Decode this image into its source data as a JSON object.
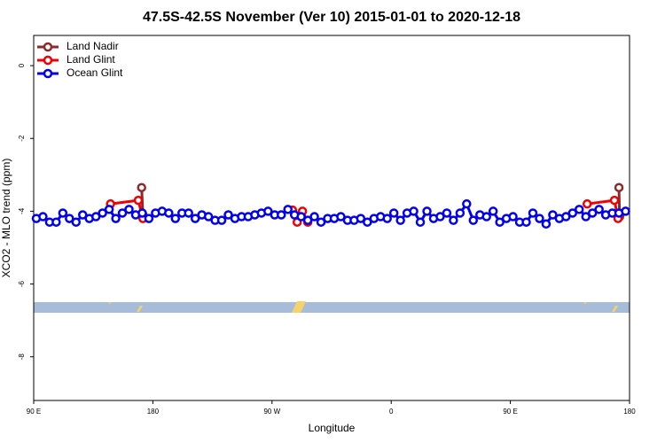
{
  "chart_data": {
    "type": "line",
    "title": "47.5S-42.5S November (Ver 10)   2015-01-01 to 2020-12-18",
    "xlabel": "Longitude",
    "ylabel": "XCO2 - MLO trend (ppm)",
    "xlim": [
      90,
      540
    ],
    "ylim": [
      -9.2,
      0.83
    ],
    "xticks": [
      {
        "value": 90,
        "label": "90 E"
      },
      {
        "value": 180,
        "label": "180"
      },
      {
        "value": 270,
        "label": "90 W"
      },
      {
        "value": 360,
        "label": "0"
      },
      {
        "value": 450,
        "label": "90 E"
      },
      {
        "value": 540,
        "label": "180"
      }
    ],
    "yticks": [
      0,
      -2,
      -4,
      -6,
      -8
    ],
    "legend": "top-left",
    "series": [
      {
        "name": "Land Nadir",
        "color": "#8b2a2a",
        "x": [
          171.5,
          172.5,
          400,
          532,
          532.5
        ],
        "values": [
          -3.35,
          -4.1,
          null,
          -3.35,
          -4.15
        ]
      },
      {
        "name": "Land Glint",
        "color": "#ee0000",
        "x": [
          148,
          169,
          172.5,
          230,
          285.5,
          289,
          293,
          297,
          400,
          508,
          528.6,
          531.3
        ],
        "values": [
          -3.8,
          -3.7,
          -4.2,
          null,
          -3.97,
          -4.3,
          -4.0,
          -4.3,
          null,
          -3.8,
          -3.7,
          -4.2
        ]
      },
      {
        "name": "Ocean Glint",
        "color": "#0000ee",
        "x": [
          92,
          97,
          102,
          107,
          112,
          117,
          122,
          127,
          132,
          137,
          142,
          147,
          152,
          157,
          162,
          167,
          172,
          177,
          182,
          187,
          192,
          197,
          202,
          207,
          212,
          217,
          222,
          227,
          232,
          237,
          242,
          247,
          252,
          257,
          262,
          267,
          272,
          277,
          282,
          287,
          292,
          297,
          302,
          307,
          312,
          317,
          322,
          327,
          332,
          337,
          342,
          347,
          352,
          357,
          362,
          367,
          372,
          377,
          382,
          387,
          392,
          397,
          402,
          407,
          412,
          417,
          422,
          427,
          432,
          437,
          442,
          447,
          452,
          457,
          462,
          467,
          472,
          477,
          482,
          487,
          492,
          497,
          502,
          507,
          512,
          517,
          522,
          527,
          532,
          537
        ],
        "values": [
          -4.2,
          -4.15,
          -4.3,
          -4.3,
          -4.05,
          -4.2,
          -4.3,
          -4.1,
          -4.2,
          -4.15,
          -4.05,
          -3.95,
          -4.2,
          -4.05,
          -3.95,
          -4.1,
          -4.05,
          -4.2,
          -4.05,
          -4.0,
          -4.05,
          -4.2,
          -4.05,
          -4.05,
          -4.2,
          -4.1,
          -4.15,
          -4.25,
          -4.25,
          -4.1,
          -4.2,
          -4.15,
          -4.15,
          -4.1,
          -4.05,
          -4.0,
          -4.1,
          -4.1,
          -3.95,
          -4.1,
          -4.15,
          -4.25,
          -4.15,
          -4.3,
          -4.2,
          -4.2,
          -4.15,
          -4.25,
          -4.25,
          -4.2,
          -4.3,
          -4.2,
          -4.15,
          -4.2,
          -4.05,
          -4.25,
          -4.05,
          -4.0,
          -4.3,
          -4.0,
          -4.2,
          -4.15,
          -4.05,
          -4.25,
          -4.05,
          -3.8,
          -4.25,
          -4.1,
          -4.15,
          -4.0,
          -4.3,
          -4.2,
          -4.15,
          -4.3,
          -4.3,
          -4.05,
          -4.2,
          -4.35,
          -4.1,
          -4.2,
          -4.15,
          -4.05,
          -3.95,
          -4.15,
          -4.05,
          -3.95,
          -4.1,
          -4.05,
          -4.05,
          -4.0
        ]
      }
    ]
  }
}
